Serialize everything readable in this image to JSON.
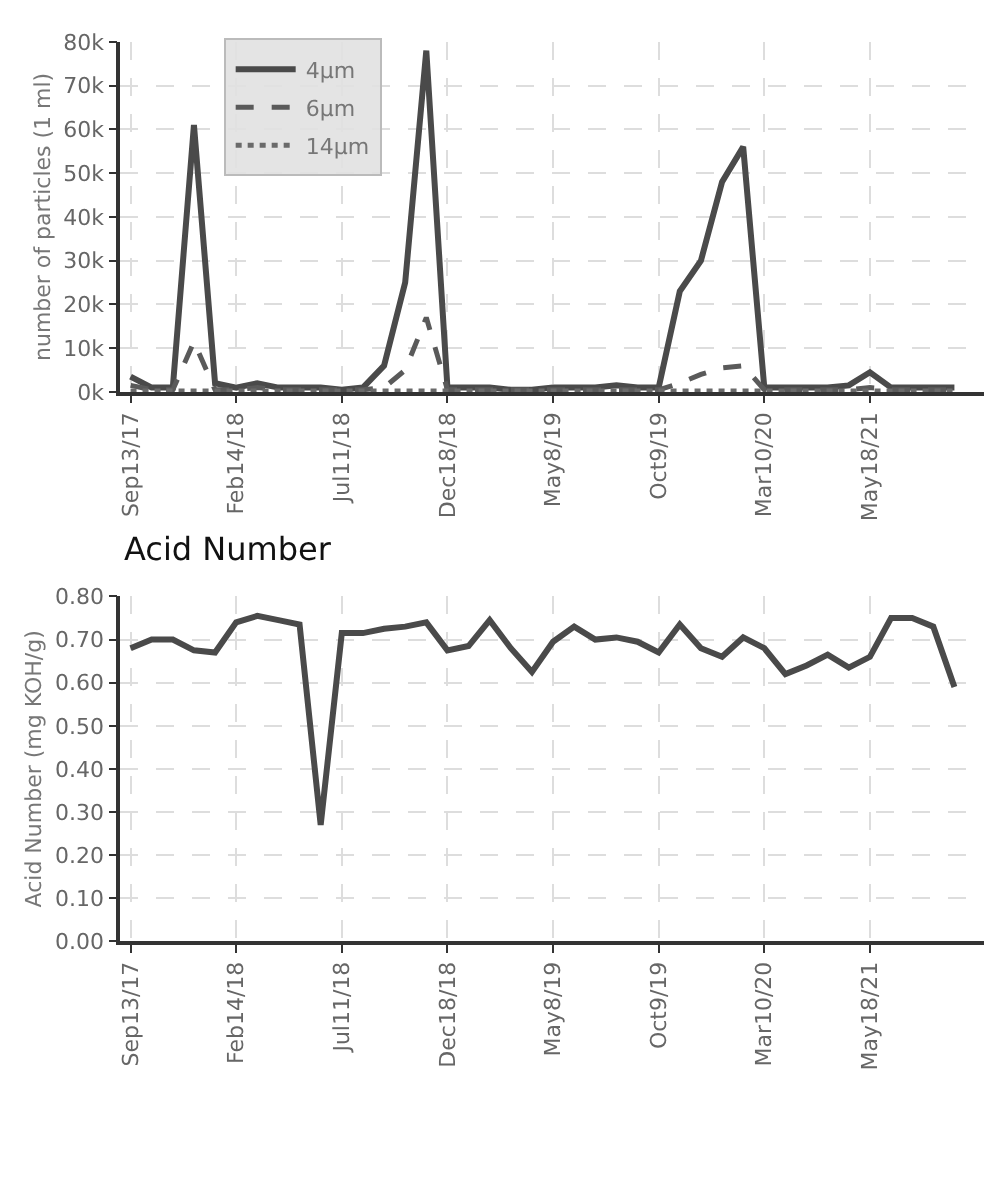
{
  "chart_data": [
    {
      "type": "line",
      "ylabel": "number of particles (1 ml)",
      "categories": [
        "Sep13/17",
        null,
        null,
        null,
        null,
        "Feb14/18",
        null,
        null,
        null,
        null,
        "Jul11/18",
        null,
        null,
        null,
        null,
        "Dec18/18",
        null,
        null,
        null,
        null,
        "May8/19",
        null,
        null,
        null,
        null,
        "Oct9/19",
        null,
        null,
        null,
        null,
        "Mar10/20",
        null,
        null,
        null,
        null,
        "May18/21",
        null,
        null,
        null,
        null
      ],
      "series": [
        {
          "name": "4µm",
          "color": "#4a4a4a",
          "line_style": "solid",
          "values": [
            3500,
            1000,
            1000,
            61000,
            2000,
            1000,
            2000,
            1000,
            1000,
            1000,
            500,
            1000,
            6000,
            25000,
            78000,
            1000,
            1000,
            1000,
            500,
            500,
            1000,
            1000,
            1000,
            1500,
            1000,
            1000,
            23000,
            30000,
            48000,
            56000,
            1000,
            1000,
            1000,
            1000,
            1500,
            4500,
            1000,
            1000,
            1000,
            1000
          ]
        },
        {
          "name": "6µm",
          "color": "#5a5a5a",
          "line_style": "dashed",
          "values": [
            1500,
            500,
            500,
            11500,
            500,
            500,
            1000,
            500,
            500,
            500,
            500,
            500,
            1000,
            5000,
            17000,
            500,
            500,
            500,
            500,
            500,
            500,
            500,
            500,
            500,
            500,
            500,
            2000,
            4000,
            5500,
            6000,
            500,
            500,
            500,
            500,
            500,
            1000,
            500,
            500,
            500,
            500
          ]
        },
        {
          "name": "14µm",
          "color": "#6a6a6a",
          "line_style": "dotted",
          "values": [
            200,
            200,
            200,
            200,
            200,
            200,
            200,
            200,
            200,
            200,
            200,
            200,
            200,
            200,
            200,
            200,
            200,
            200,
            200,
            200,
            200,
            200,
            200,
            200,
            200,
            200,
            200,
            200,
            200,
            200,
            200,
            200,
            200,
            200,
            200,
            200,
            200,
            200,
            200,
            200
          ]
        }
      ],
      "ylim": [
        0,
        80000
      ],
      "yticks": [
        {
          "value": 0,
          "label": "0k"
        },
        {
          "value": 10000,
          "label": "10k"
        },
        {
          "value": 20000,
          "label": "20k"
        },
        {
          "value": 30000,
          "label": "30k"
        },
        {
          "value": 40000,
          "label": "40k"
        },
        {
          "value": 50000,
          "label": "50k"
        },
        {
          "value": 60000,
          "label": "60k"
        },
        {
          "value": 70000,
          "label": "70k"
        },
        {
          "value": 80000,
          "label": "80k"
        }
      ],
      "grid": true,
      "legend": "top left",
      "marker": "none"
    },
    {
      "type": "line",
      "title": "Acid Number",
      "ylabel": "Acid Number (mg KOH/g)",
      "categories": [
        "Sep13/17",
        null,
        null,
        null,
        null,
        "Feb14/18",
        null,
        null,
        null,
        null,
        "Jul11/18",
        null,
        null,
        null,
        null,
        "Dec18/18",
        null,
        null,
        null,
        null,
        "May8/19",
        null,
        null,
        null,
        null,
        "Oct9/19",
        null,
        null,
        null,
        null,
        "Mar10/20",
        null,
        null,
        null,
        null,
        "May18/21",
        null,
        null,
        null,
        null
      ],
      "series": [
        {
          "color": "#4a4a4a",
          "line_style": "solid",
          "values": [
            0.68,
            0.7,
            0.7,
            0.675,
            0.67,
            0.74,
            0.755,
            0.745,
            0.735,
            0.27,
            0.715,
            0.715,
            0.725,
            0.73,
            0.74,
            0.675,
            0.685,
            0.745,
            0.68,
            0.625,
            0.695,
            0.73,
            0.7,
            0.705,
            0.695,
            0.67,
            0.735,
            0.68,
            0.66,
            0.705,
            0.68,
            0.62,
            0.64,
            0.665,
            0.635,
            0.66,
            0.75,
            0.75,
            0.73,
            0.59
          ]
        }
      ],
      "ylim": [
        0,
        0.8
      ],
      "yticks": [
        {
          "value": 0,
          "label": "0.00"
        },
        {
          "value": 0.1,
          "label": "0.10"
        },
        {
          "value": 0.2,
          "label": "0.20"
        },
        {
          "value": 0.3,
          "label": "0.30"
        },
        {
          "value": 0.4,
          "label": "0.40"
        },
        {
          "value": 0.5,
          "label": "0.50"
        },
        {
          "value": 0.6,
          "label": "0.60"
        },
        {
          "value": 0.7,
          "label": "0.70"
        },
        {
          "value": 0.8,
          "label": "0.80"
        }
      ],
      "grid": true,
      "marker": "none"
    }
  ]
}
